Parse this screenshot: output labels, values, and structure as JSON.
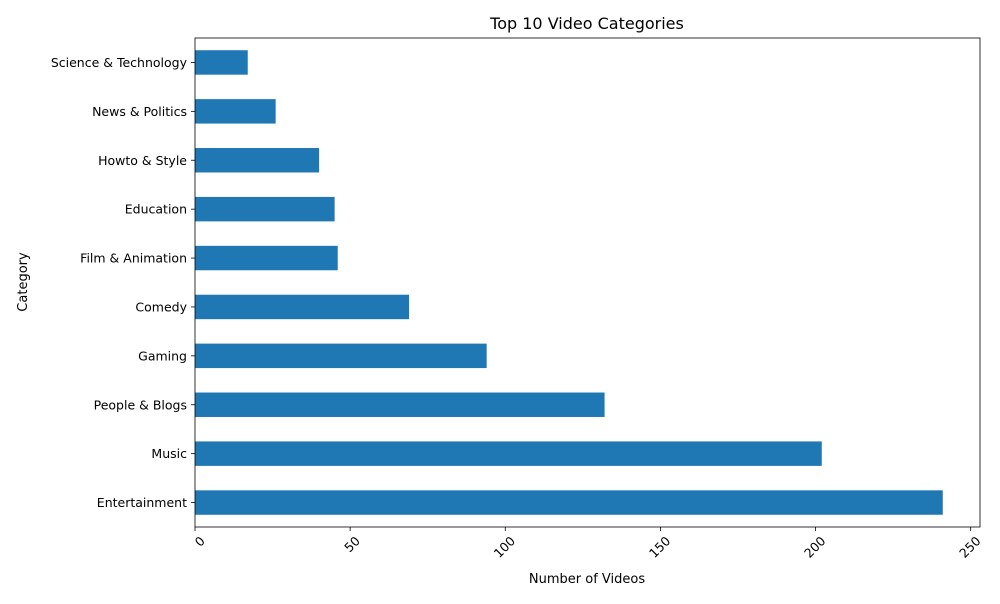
{
  "chart_data": {
    "type": "bar",
    "orientation": "horizontal",
    "title": "Top 10 Video Categories",
    "xlabel": "Number of Videos",
    "ylabel": "Category",
    "categories": [
      "Entertainment",
      "Music",
      "People & Blogs",
      "Gaming",
      "Comedy",
      "Film & Animation",
      "Education",
      "Howto & Style",
      "News & Politics",
      "Science & Technology"
    ],
    "values": [
      241,
      202,
      132,
      94,
      69,
      46,
      45,
      40,
      26,
      17
    ],
    "xlim": [
      0,
      253
    ],
    "xticks": [
      0,
      50,
      100,
      150,
      200,
      250
    ],
    "xtick_labels": [
      "0",
      "50",
      "100",
      "150",
      "200",
      "250"
    ],
    "xtick_rotation": 45,
    "grid": false,
    "bar_color": "#1f77b4"
  }
}
